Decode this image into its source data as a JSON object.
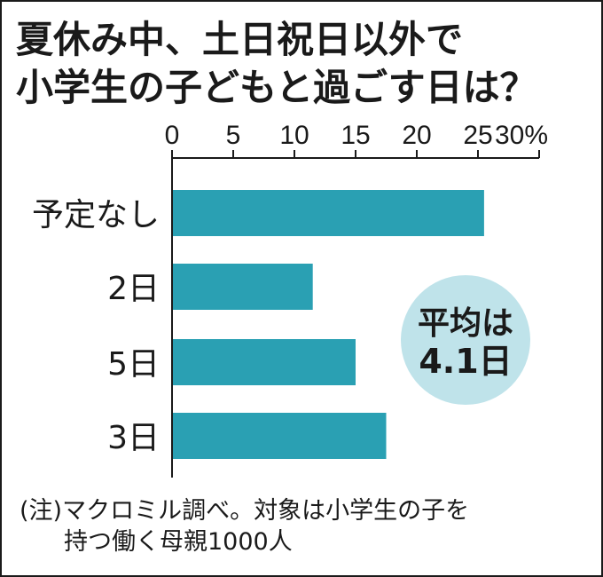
{
  "title_line1": "夏休み中、土日祝日以外で",
  "title_line2": "小学生の子どもと過ごす日は？",
  "chart_data": {
    "type": "bar",
    "orientation": "horizontal",
    "categories": [
      "予定なし",
      "2日",
      "5日",
      "3日"
    ],
    "values": [
      25.5,
      11.5,
      15,
      17.5
    ],
    "xlim": [
      0,
      30
    ],
    "ticks": [
      "0",
      "5",
      "10",
      "15",
      "20",
      "25",
      "30%"
    ],
    "bar_color": "#2aa0b3",
    "grid": false,
    "annotation": {
      "line1": "平均は",
      "line2": "4.1日",
      "fill": "#bfe3ea"
    }
  },
  "note_line1": "(注)マクロミル調べ。対象は小学生の子を",
  "note_line2": "持つ働く母親1000人"
}
